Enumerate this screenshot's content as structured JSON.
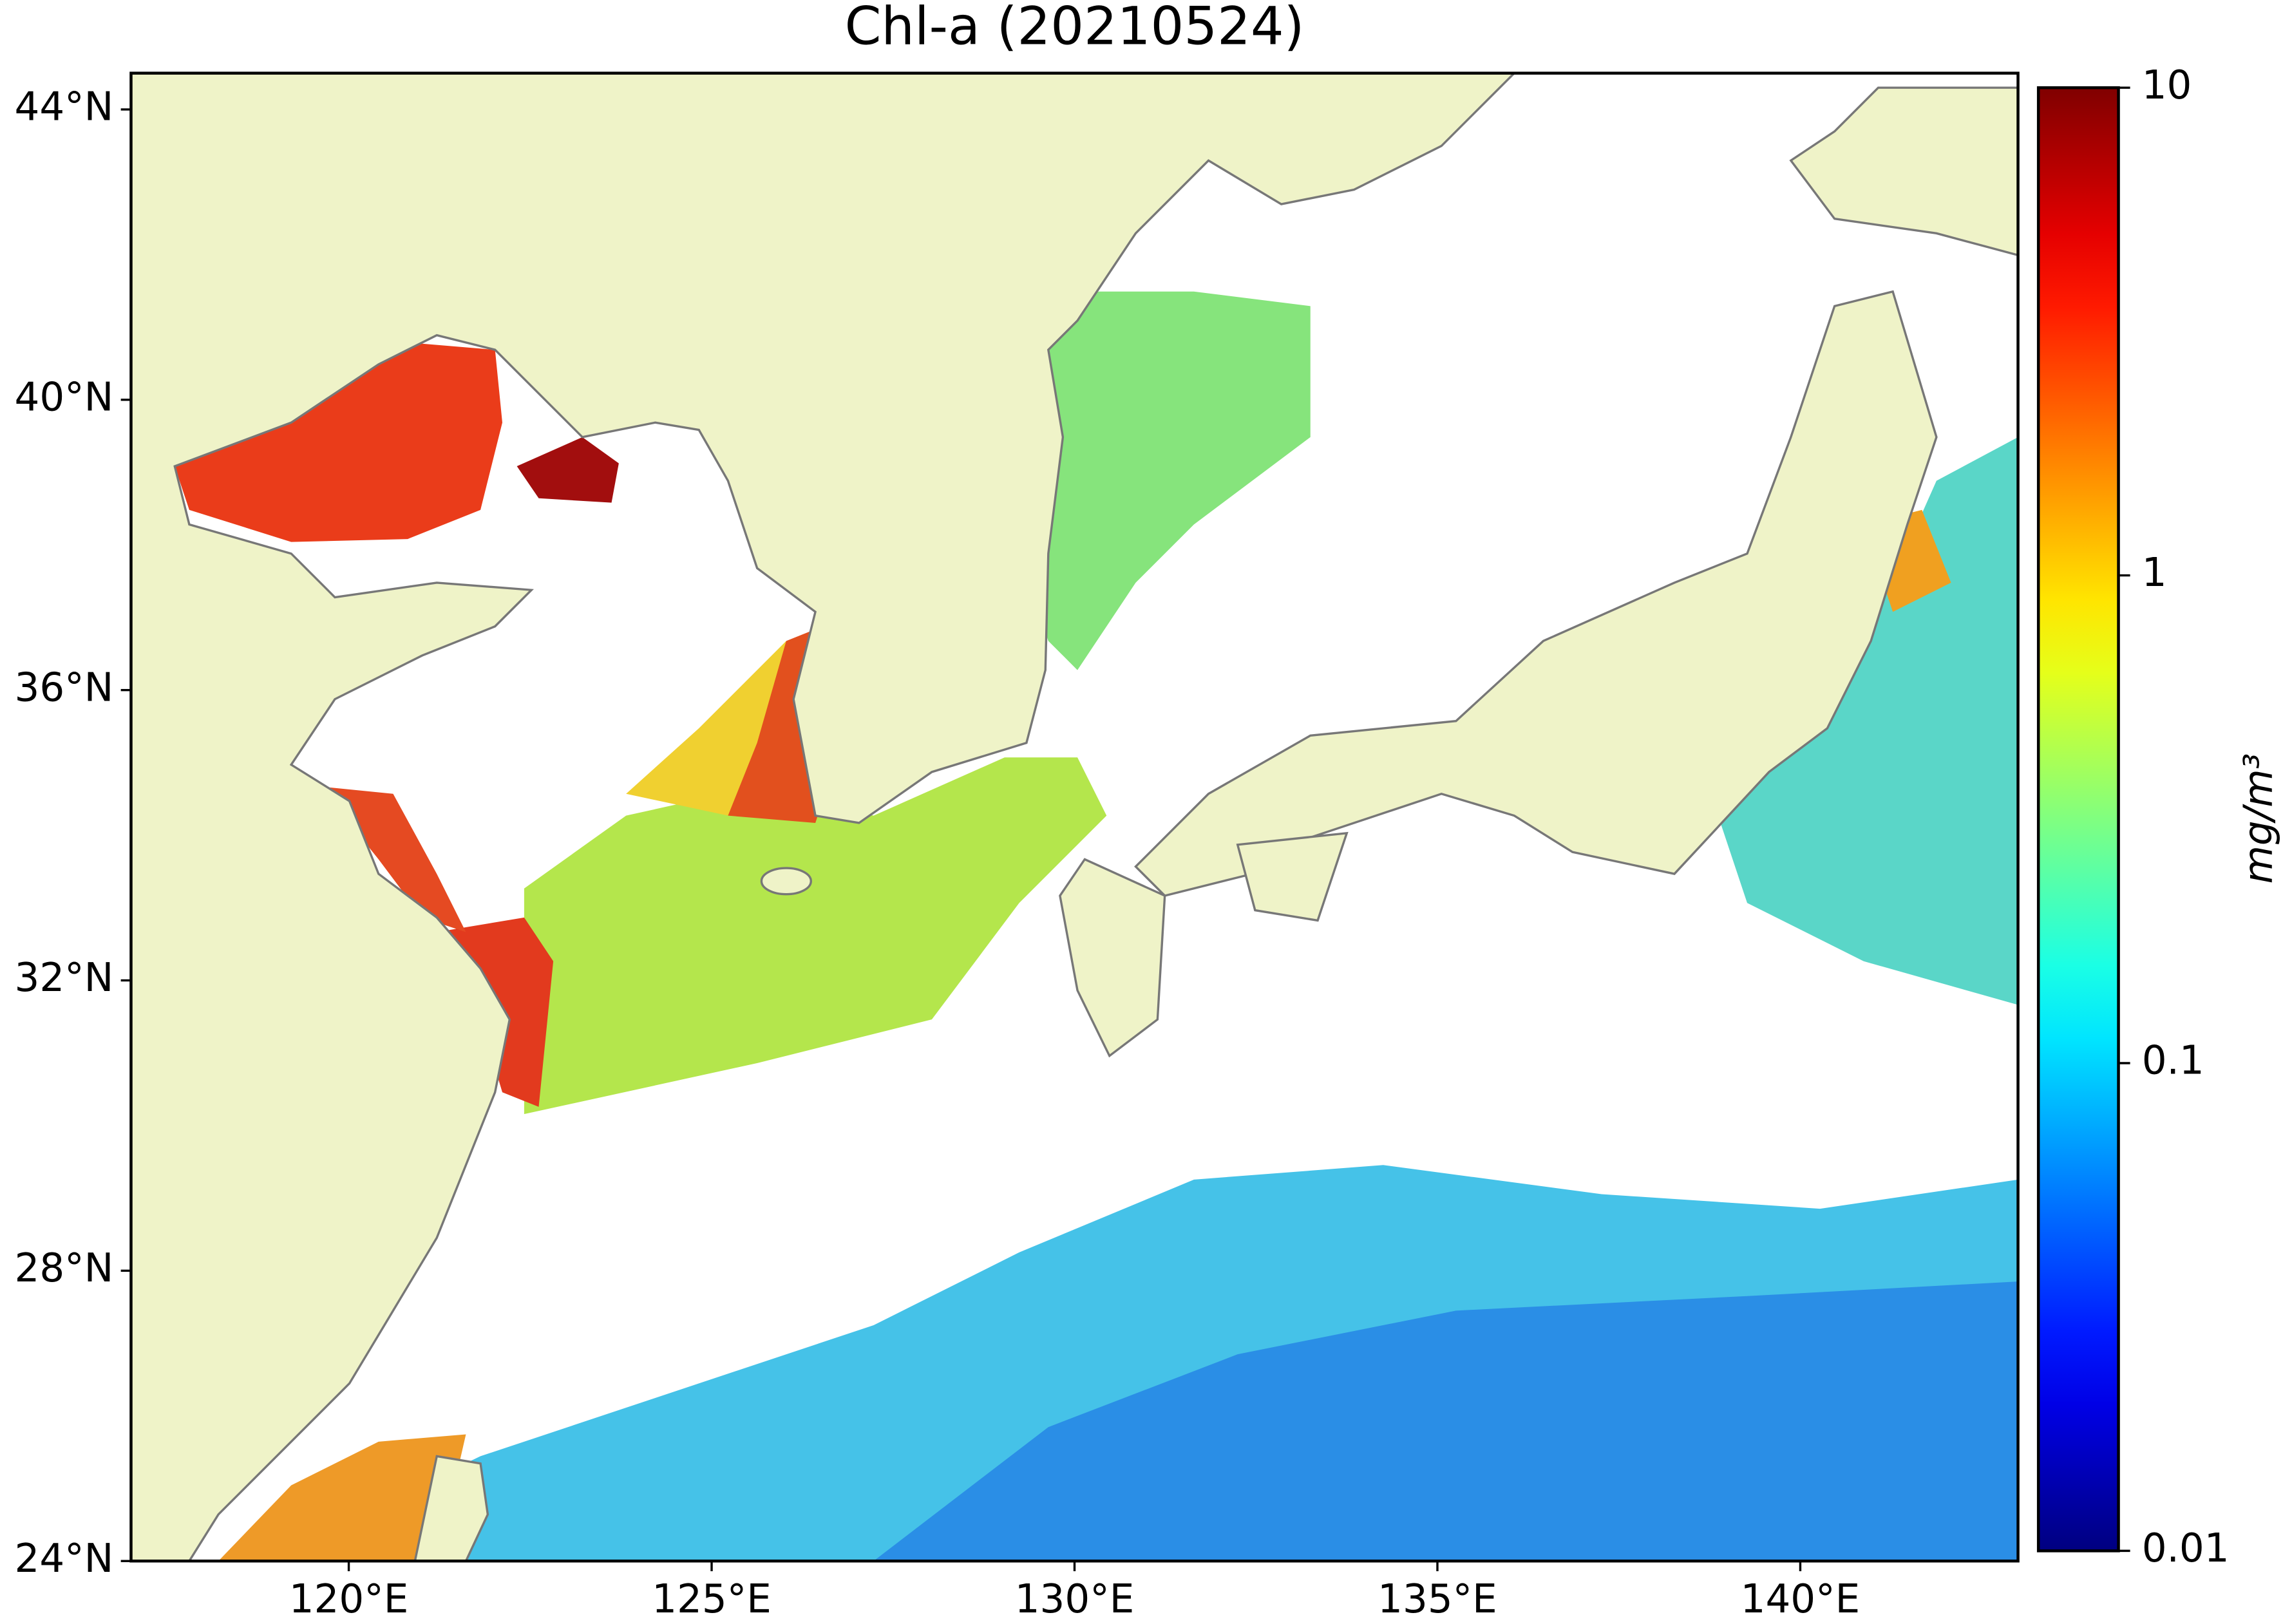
{
  "chart_data": {
    "type": "map",
    "title": "Chl-a (20210524)",
    "xlim": [
      117,
      143
    ],
    "ylim": [
      24,
      44.5
    ],
    "xticks": [
      {
        "value": 120,
        "label": "120°E"
      },
      {
        "value": 125,
        "label": "125°E"
      },
      {
        "value": 130,
        "label": "130°E"
      },
      {
        "value": 135,
        "label": "135°E"
      },
      {
        "value": 140,
        "label": "140°E"
      }
    ],
    "yticks": [
      {
        "value": 24,
        "label": "24°N"
      },
      {
        "value": 28,
        "label": "28°N"
      },
      {
        "value": 32,
        "label": "32°N"
      },
      {
        "value": 36,
        "label": "36°N"
      },
      {
        "value": 40,
        "label": "40°N"
      },
      {
        "value": 44,
        "label": "44°N"
      }
    ],
    "colorbar": {
      "label": "mg/m³",
      "lim": [
        0.01,
        10
      ],
      "ticks": [
        0.01,
        0.1,
        1,
        10
      ],
      "log": true,
      "colormap": "jet"
    }
  }
}
